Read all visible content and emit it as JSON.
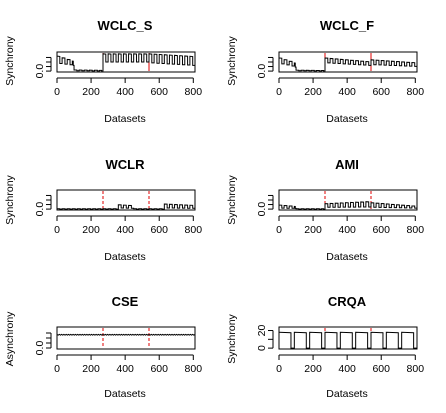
{
  "chart_data": [
    {
      "type": "line",
      "title": "WCLC_S",
      "xlabel": "Datasets",
      "ylabel": "Synchrony",
      "x_ticks": [
        0,
        200,
        400,
        600,
        800
      ],
      "y_ticks": [
        0.0
      ],
      "y_tick_labels": [
        "0.0"
      ],
      "xlim": [
        0,
        810
      ],
      "ylim": [
        -0.05,
        1.05
      ],
      "y_minor_ticks": [
        0.25,
        0.5,
        0.75
      ],
      "pattern": "square",
      "period": 30,
      "segments": [
        {
          "x": [
            0,
            100
          ],
          "high": [
            0.82,
            0.52
          ],
          "low": [
            0.42,
            0.3
          ]
        },
        {
          "x": [
            100,
            270
          ],
          "high": [
            0.06,
            0.04
          ],
          "low": [
            0.02,
            0.01
          ]
        },
        {
          "x": [
            270,
            540
          ],
          "high": [
            0.95,
            0.95
          ],
          "low": [
            0.5,
            0.5
          ]
        },
        {
          "x": [
            540,
            810
          ],
          "high": [
            0.95,
            0.8
          ],
          "low": [
            0.45,
            0.3
          ]
        }
      ],
      "breaks": [
        270,
        540
      ],
      "series_color": "#000000",
      "break_color": "#e00000",
      "break_style": "solid"
    },
    {
      "type": "line",
      "title": "WCLC_F",
      "xlabel": "Datasets",
      "ylabel": "Synchrony",
      "x_ticks": [
        0,
        200,
        400,
        600,
        800
      ],
      "y_ticks": [
        0.0
      ],
      "y_tick_labels": [
        "0.0"
      ],
      "xlim": [
        0,
        810
      ],
      "ylim": [
        -0.05,
        1.05
      ],
      "y_minor_ticks": [
        0.25,
        0.5,
        0.75
      ],
      "pattern": "square",
      "period": 30,
      "segments": [
        {
          "x": [
            0,
            100
          ],
          "high": [
            0.72,
            0.42
          ],
          "low": [
            0.4,
            0.2
          ]
        },
        {
          "x": [
            100,
            270
          ],
          "high": [
            0.05,
            0.03
          ],
          "low": [
            0.02,
            0.01
          ]
        },
        {
          "x": [
            270,
            540
          ],
          "high": [
            0.72,
            0.5
          ],
          "low": [
            0.45,
            0.3
          ]
        },
        {
          "x": [
            540,
            810
          ],
          "high": [
            0.62,
            0.45
          ],
          "low": [
            0.35,
            0.25
          ]
        }
      ],
      "breaks": [
        270,
        540
      ],
      "series_color": "#000000",
      "break_color": "#e00000",
      "break_style": "solid"
    },
    {
      "type": "line",
      "title": "WCLR",
      "xlabel": "Datasets",
      "ylabel": "Synchrony",
      "x_ticks": [
        0,
        200,
        400,
        600,
        800
      ],
      "y_ticks": [
        0.0
      ],
      "y_tick_labels": [
        "0.0"
      ],
      "xlim": [
        0,
        810
      ],
      "ylim": [
        -0.05,
        1.05
      ],
      "y_minor_ticks": [
        0.25,
        0.5,
        0.75
      ],
      "pattern": "square",
      "period": 30,
      "segments": [
        {
          "x": [
            0,
            360
          ],
          "high": [
            0.02,
            0.02
          ],
          "low": [
            0.0,
            0.0
          ]
        },
        {
          "x": [
            360,
            450
          ],
          "high": [
            0.24,
            0.18
          ],
          "low": [
            0.06,
            0.04
          ]
        },
        {
          "x": [
            450,
            630
          ],
          "high": [
            0.02,
            0.02
          ],
          "low": [
            0.0,
            0.0
          ]
        },
        {
          "x": [
            630,
            810
          ],
          "high": [
            0.28,
            0.2
          ],
          "low": [
            0.06,
            0.04
          ]
        }
      ],
      "breaks": [
        270,
        540
      ],
      "series_color": "#000000",
      "break_color": "#e00000",
      "break_style": "dashed"
    },
    {
      "type": "line",
      "title": "AMI",
      "xlabel": "Datasets",
      "ylabel": "Synchrony",
      "x_ticks": [
        0,
        200,
        400,
        600,
        800
      ],
      "y_ticks": [
        0.0
      ],
      "y_tick_labels": [
        "0.0"
      ],
      "xlim": [
        0,
        810
      ],
      "ylim": [
        -0.05,
        1.05
      ],
      "y_minor_ticks": [
        0.25,
        0.5,
        0.75
      ],
      "pattern": "square",
      "period": 30,
      "segments": [
        {
          "x": [
            0,
            100
          ],
          "high": [
            0.22,
            0.14
          ],
          "low": [
            0.05,
            0.04
          ]
        },
        {
          "x": [
            100,
            270
          ],
          "high": [
            0.02,
            0.02
          ],
          "low": [
            0.0,
            0.0
          ]
        },
        {
          "x": [
            270,
            540
          ],
          "high": [
            0.3,
            0.42
          ],
          "low": [
            0.1,
            0.12
          ]
        },
        {
          "x": [
            540,
            810
          ],
          "high": [
            0.35,
            0.15
          ],
          "low": [
            0.1,
            0.05
          ]
        }
      ],
      "breaks": [
        270,
        540
      ],
      "series_color": "#000000",
      "break_color": "#e00000",
      "break_style": "dashed"
    },
    {
      "type": "line",
      "title": "CSE",
      "xlabel": "Datasets",
      "ylabel": "Asynchrony",
      "x_ticks": [
        0,
        200,
        400,
        600,
        800
      ],
      "y_ticks": [
        0.0
      ],
      "y_tick_labels": [
        "0.0"
      ],
      "xlim": [
        0,
        810
      ],
      "ylim": [
        -0.05,
        1.05
      ],
      "y_minor_ticks": [
        0.25,
        0.5,
        0.75
      ],
      "pattern": "flat",
      "segments": [
        {
          "x": [
            0,
            810
          ],
          "high": [
            0.68,
            0.68
          ],
          "low": [
            0.64,
            0.64
          ]
        }
      ],
      "breaks": [
        270,
        540
      ],
      "series_color": "#000000",
      "break_color": "#e00000",
      "break_style": "dashed"
    },
    {
      "type": "line",
      "title": "CRQA",
      "xlabel": "Datasets",
      "ylabel": "Synchrony",
      "x_ticks": [
        0,
        200,
        400,
        600,
        800
      ],
      "y_ticks": [
        0,
        10,
        20
      ],
      "y_tick_labels": [
        "0",
        "",
        "20"
      ],
      "xlim": [
        0,
        810
      ],
      "ylim": [
        -1,
        24
      ],
      "y_minor_ticks": [],
      "pattern": "square",
      "period": 90,
      "duty": 0.78,
      "segments": [
        {
          "x": [
            0,
            810
          ],
          "high": [
            18,
            18
          ],
          "low": [
            0,
            0
          ]
        }
      ],
      "breaks": [
        270,
        540
      ],
      "series_color": "#000000",
      "break_color": "#e00000",
      "break_style": "dashed"
    }
  ]
}
